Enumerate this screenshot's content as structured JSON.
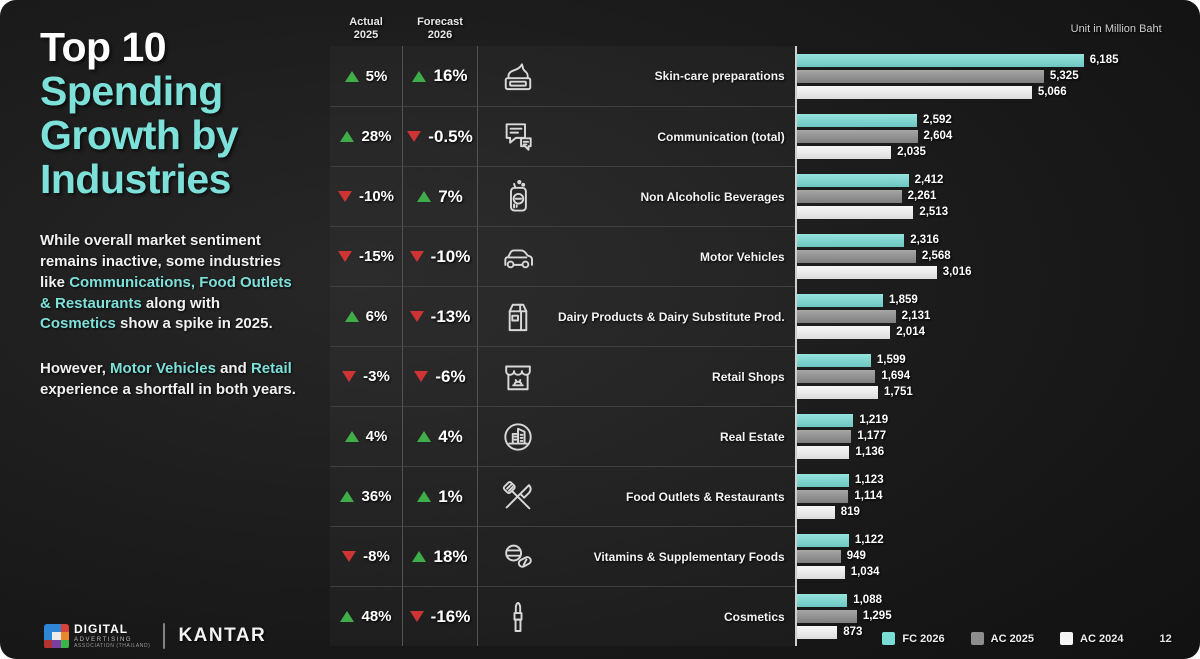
{
  "meta": {
    "page_number": "12",
    "unit_label": "Unit in Million Baht"
  },
  "colors": {
    "accent": "#7de1da",
    "positive": "#3fae49",
    "negative": "#cf3434",
    "bar_fc2026": "#79dcd5",
    "bar_ac2025": "#8d8d8d",
    "bar_ac2024": "#f5f5f5"
  },
  "sidebar": {
    "title_white": "Top 10",
    "title_accent": "Spending Growth by Industries",
    "paragraph1_segments": [
      {
        "text": "While overall market sentiment remains inactive, some industries like ",
        "highlight": false
      },
      {
        "text": "Communications, Food Outlets & Restaurants",
        "highlight": true
      },
      {
        "text": " along with ",
        "highlight": false
      },
      {
        "text": "Cosmetics",
        "highlight": true
      },
      {
        "text": " show a spike in 2025.",
        "highlight": false
      }
    ],
    "paragraph2_segments": [
      {
        "text": "However, ",
        "highlight": false
      },
      {
        "text": "Motor Vehicles",
        "highlight": true
      },
      {
        "text": " and ",
        "highlight": false
      },
      {
        "text": "Retail",
        "highlight": true
      },
      {
        "text": " experience a shortfall in both years.",
        "highlight": false
      }
    ]
  },
  "table": {
    "actual_header": "Actual\n2025",
    "forecast_header": "Forecast\n2026"
  },
  "footer": {
    "daat_line1": "DIGITAL",
    "daat_line2": "ADVERTISING",
    "daat_line3": "ASSOCIATION (THAILAND)",
    "kantar": "KANTAR"
  },
  "chart_data": {
    "type": "bar",
    "orientation": "horizontal",
    "title": "Top 10 Spending Growth by Industries",
    "unit": "Million Baht",
    "xlim": [
      0,
      6500
    ],
    "grid": false,
    "legend_position": "bottom-right",
    "categories": [
      "Skin-care preparations",
      "Communication (total)",
      "Non Alcoholic Beverages",
      "Motor Vehicles",
      "Dairy Products & Dairy Substitute Prod.",
      "Retail Shops",
      "Real Estate",
      "Food Outlets & Restaurants",
      "Vitamins & Supplementary Foods",
      "Cosmetics"
    ],
    "icons": [
      "cream-jar-icon",
      "chat-bubbles-icon",
      "beverage-bottle-icon",
      "car-icon",
      "milk-carton-icon",
      "storefront-icon",
      "buildings-circle-icon",
      "fork-knife-icon",
      "pills-icon",
      "lipstick-icon"
    ],
    "series": [
      {
        "name": "FC 2026",
        "color": "#79dcd5",
        "values": [
          6185,
          2592,
          2412,
          2316,
          1859,
          1599,
          1219,
          1123,
          1122,
          1088
        ]
      },
      {
        "name": "AC 2025",
        "color": "#8d8d8d",
        "values": [
          5325,
          2604,
          2261,
          2568,
          2131,
          1694,
          1177,
          1114,
          949,
          1295
        ]
      },
      {
        "name": "AC 2024",
        "color": "#f5f5f5",
        "values": [
          5066,
          2035,
          2513,
          3016,
          2014,
          1751,
          1136,
          819,
          1034,
          873
        ]
      }
    ],
    "growth_columns": {
      "actual_2025": {
        "values": [
          "5%",
          "28%",
          "-10%",
          "-15%",
          "6%",
          "-3%",
          "4%",
          "36%",
          "-8%",
          "48%"
        ],
        "directions": [
          "up",
          "up",
          "down",
          "down",
          "up",
          "down",
          "up",
          "up",
          "down",
          "up"
        ]
      },
      "forecast_2026": {
        "values": [
          "16%",
          "-0.5%",
          "7%",
          "-10%",
          "-13%",
          "-6%",
          "4%",
          "1%",
          "18%",
          "-16%"
        ],
        "directions": [
          "up",
          "down",
          "up",
          "down",
          "down",
          "down",
          "up",
          "up",
          "up",
          "down"
        ]
      }
    }
  }
}
